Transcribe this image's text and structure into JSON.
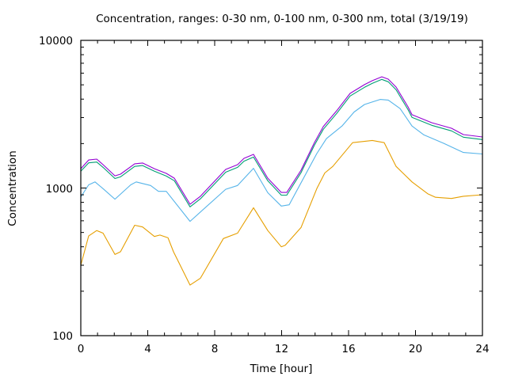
{
  "chart_data": {
    "type": "line",
    "title": "Concentration, ranges: 0-30 nm, 0-100 nm, 0-300 nm, total (3/19/19)",
    "xlabel": "Time [hour]",
    "ylabel": "Concentration",
    "xlim": [
      0,
      24
    ],
    "ylim": [
      100,
      10000
    ],
    "yscale": "log",
    "xticks": [
      "0",
      "4",
      "8",
      "12",
      "16",
      "20",
      "24"
    ],
    "yticks": [
      "100",
      "1000",
      "10000"
    ],
    "grid": false,
    "legend": "none",
    "series": [
      {
        "name": "total",
        "color": "#9400d3",
        "x": [
          0,
          0.47,
          0.95,
          1.33,
          2.04,
          2.37,
          3.22,
          3.69,
          4.4,
          5.11,
          5.59,
          6.53,
          7.15,
          8.66,
          9.37,
          9.75,
          10.32,
          11.17,
          11.98,
          12.31,
          13.16,
          13.96,
          14.49,
          15.29,
          16.09,
          16.95,
          17.42,
          17.99,
          18.37,
          18.84,
          19.55,
          19.79,
          20.97,
          22.15,
          22.86,
          24
        ],
        "y": [
          1352,
          1549,
          1570,
          1440,
          1210,
          1241,
          1459,
          1477,
          1352,
          1256,
          1166,
          776,
          879,
          1336,
          1440,
          1589,
          1690,
          1166,
          933,
          933,
          1321,
          2032,
          2606,
          3335,
          4375,
          5012,
          5333,
          5667,
          5458,
          4827,
          3548,
          3136,
          2770,
          2541,
          2301,
          2218
        ]
      },
      {
        "name": "0-300 nm",
        "color": "#009e73",
        "x": [
          0,
          0.47,
          0.95,
          1.33,
          2.04,
          2.37,
          3.22,
          3.69,
          4.4,
          5.11,
          5.59,
          6.53,
          7.15,
          8.66,
          9.37,
          9.75,
          10.32,
          11.17,
          11.98,
          12.31,
          13.16,
          13.96,
          14.49,
          15.29,
          16.09,
          16.95,
          17.42,
          17.99,
          18.37,
          18.84,
          19.55,
          19.79,
          20.97,
          22.15,
          22.86,
          24
        ],
        "y": [
          1300,
          1480,
          1500,
          1380,
          1160,
          1190,
          1400,
          1420,
          1300,
          1205,
          1120,
          745,
          845,
          1280,
          1380,
          1520,
          1620,
          1120,
          895,
          895,
          1270,
          1950,
          2500,
          3200,
          4200,
          4810,
          5120,
          5440,
          5240,
          4630,
          3400,
          3010,
          2660,
          2440,
          2210,
          2130
        ]
      },
      {
        "name": "0-100 nm",
        "color": "#56b4e9",
        "x": [
          0,
          0.47,
          0.85,
          1.33,
          2.04,
          2.98,
          3.31,
          4.17,
          4.64,
          5.11,
          6.53,
          8.66,
          9.37,
          10.32,
          11.17,
          11.98,
          12.45,
          14.1,
          14.68,
          15.62,
          16.33,
          16.95,
          17.89,
          18.37,
          19.08,
          19.79,
          20.5,
          21.68,
          22.86,
          24
        ],
        "y": [
          870,
          1050,
          1100,
          990,
          840,
          1050,
          1100,
          1040,
          950,
          950,
          595,
          980,
          1040,
          1360,
          930,
          755,
          770,
          1710,
          2160,
          2640,
          3270,
          3680,
          3980,
          3940,
          3450,
          2630,
          2290,
          2010,
          1740,
          1700
        ]
      },
      {
        "name": "0-30 nm",
        "color": "#e69f00",
        "x": [
          0,
          0.47,
          0.95,
          1.33,
          2.04,
          2.37,
          3.22,
          3.69,
          4.4,
          4.73,
          5.21,
          5.54,
          6.53,
          7.15,
          8.52,
          9.37,
          10.32,
          11.17,
          11.98,
          12.22,
          13.16,
          14.1,
          14.58,
          15.06,
          16.24,
          17.42,
          18.13,
          18.84,
          19.79,
          20.73,
          21.2,
          22.15,
          22.86,
          24
        ],
        "y": [
          300,
          473,
          515,
          495,
          355,
          370,
          560,
          545,
          470,
          480,
          460,
          370,
          220,
          245,
          455,
          495,
          735,
          515,
          400,
          410,
          540,
          990,
          1265,
          1400,
          2030,
          2100,
          2030,
          1400,
          1100,
          915,
          865,
          850,
          880,
          900
        ]
      }
    ]
  }
}
